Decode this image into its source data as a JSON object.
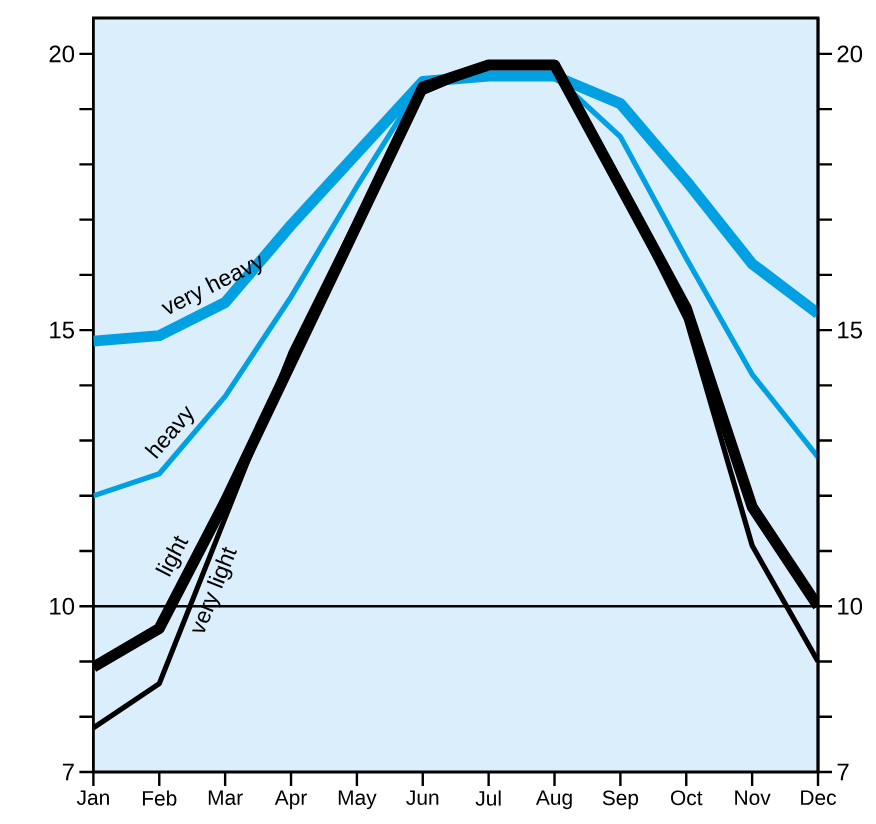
{
  "chart_data": {
    "type": "line",
    "categories": [
      "Jan",
      "Feb",
      "Mar",
      "Apr",
      "May",
      "Jun",
      "Jul",
      "Aug",
      "Sep",
      "Oct",
      "Nov",
      "Dec"
    ],
    "series": [
      {
        "name": "very heavy",
        "color": "#00a0e3",
        "values": [
          14.8,
          14.9,
          15.5,
          16.9,
          18.2,
          19.5,
          19.6,
          19.6,
          19.1,
          17.7,
          16.2,
          15.3
        ]
      },
      {
        "name": "heavy",
        "color": "#00a0e3",
        "values": [
          12.0,
          12.4,
          13.8,
          15.6,
          17.6,
          19.5,
          19.6,
          19.6,
          18.5,
          16.3,
          14.2,
          12.7
        ]
      },
      {
        "name": "light",
        "color": "#000000",
        "values": [
          8.9,
          9.6,
          11.9,
          14.4,
          16.9,
          19.4,
          19.8,
          19.8,
          17.6,
          15.4,
          11.8,
          10.0
        ]
      },
      {
        "name": "very light",
        "color": "#000000",
        "values": [
          7.8,
          8.6,
          11.6,
          14.6,
          17.0,
          19.3,
          19.8,
          19.8,
          17.6,
          15.2,
          11.1,
          9.0
        ]
      }
    ],
    "ylim": [
      7,
      20.65
    ],
    "yticks": [
      7,
      {
        "value": 8,
        "label": null
      },
      {
        "value": 9,
        "label": null
      },
      10,
      {
        "value": 11,
        "label": null
      },
      {
        "value": 12,
        "label": null
      },
      {
        "value": 13,
        "label": null
      },
      {
        "value": 14,
        "label": null
      },
      15,
      {
        "value": 16,
        "label": null
      },
      {
        "value": 17,
        "label": null
      },
      {
        "value": 18,
        "label": null
      },
      {
        "value": 19,
        "label": null
      },
      20
    ],
    "y2lim": [
      7,
      20.65
    ],
    "y2ticks": [
      7,
      {
        "value": 8,
        "label": null
      },
      {
        "value": 9,
        "label": null
      },
      10,
      {
        "value": 11,
        "label": null
      },
      {
        "value": 12,
        "label": null
      },
      {
        "value": 13,
        "label": null
      },
      {
        "value": 14,
        "label": null
      },
      15,
      {
        "value": 16,
        "label": null
      },
      {
        "value": 17,
        "label": null
      },
      {
        "value": 18,
        "label": null
      },
      {
        "value": 19,
        "label": null
      },
      20
    ],
    "ref_lines": [
      {
        "axis": "y",
        "value": 10,
        "color": "#000000"
      }
    ],
    "grid": false,
    "marker": "none",
    "line_style": "solid"
  }
}
